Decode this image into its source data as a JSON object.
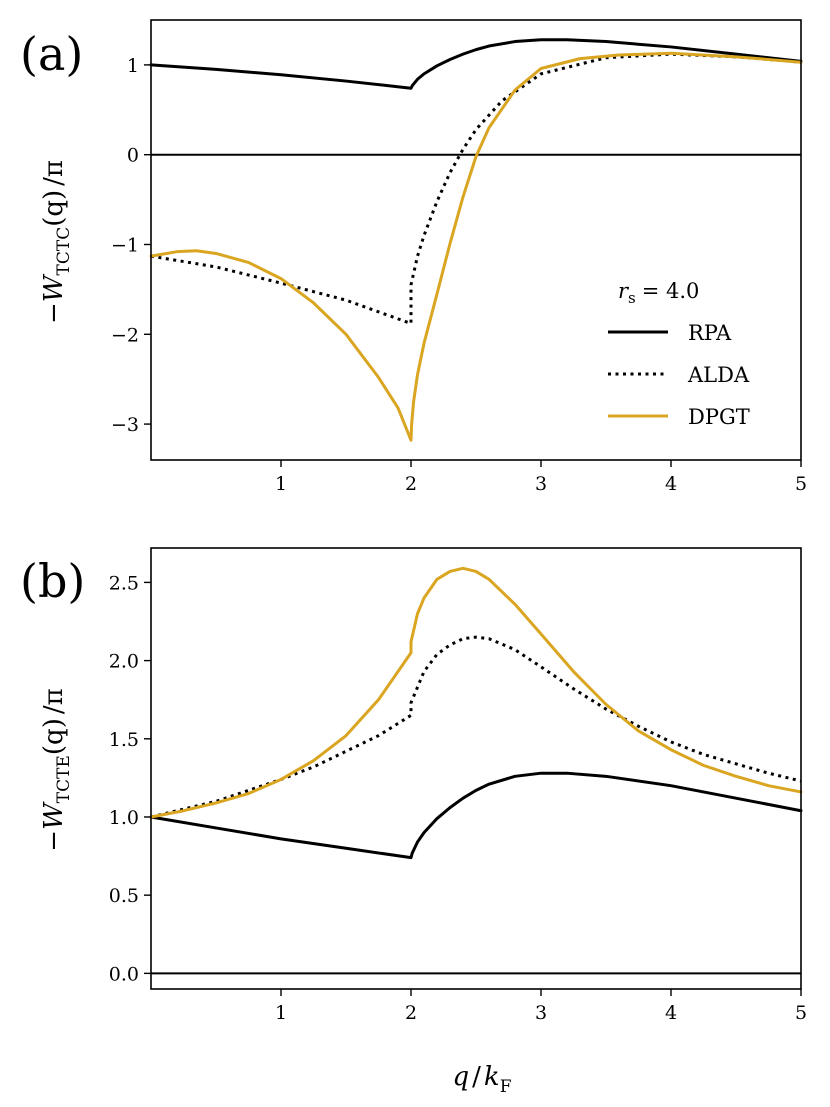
{
  "colors": {
    "rpa": "#000000",
    "alda": "#000000",
    "dpgt": "#DAA520"
  },
  "xlabel": {
    "var": "q",
    "sep": "/",
    "k": "k",
    "sub": "F"
  },
  "legend": {
    "param_var": "r",
    "param_sub": "s",
    "param_value": "= 4.0",
    "entries": [
      {
        "key": "rpa",
        "label": "RPA"
      },
      {
        "key": "alda",
        "label": "ALDA"
      },
      {
        "key": "dpgt",
        "label": "DPGT"
      }
    ]
  },
  "chart_data": [
    {
      "type": "line",
      "panel_label": "(a)",
      "ylabel": {
        "prefix": "−W",
        "sub": "TCTC",
        "arg": "(q)",
        "suffix": "/π"
      },
      "xlim": [
        0,
        5
      ],
      "ylim": [
        -3.4,
        1.5
      ],
      "xticks": [
        {
          "v": 1,
          "label": "1"
        },
        {
          "v": 2,
          "label": "2"
        },
        {
          "v": 3,
          "label": "3"
        },
        {
          "v": 4,
          "label": "4"
        },
        {
          "v": 5,
          "label": "5"
        }
      ],
      "yticks": [
        {
          "v": 1,
          "label": "1"
        },
        {
          "v": 0,
          "label": "0"
        },
        {
          "v": -1,
          "label": "−1"
        },
        {
          "v": -2,
          "label": "−2"
        },
        {
          "v": -3,
          "label": "−3"
        }
      ],
      "hline": 0,
      "series": [
        {
          "name": "RPA",
          "key": "rpa",
          "style": "solid",
          "x": [
            0,
            0.5,
            1.0,
            1.5,
            2.0,
            2.01,
            2.05,
            2.1,
            2.2,
            2.3,
            2.4,
            2.5,
            2.6,
            2.8,
            3.0,
            3.1,
            3.2,
            3.5,
            4.0,
            4.5,
            5.0
          ],
          "y": [
            1.0,
            0.95,
            0.89,
            0.82,
            0.74,
            0.77,
            0.84,
            0.9,
            0.99,
            1.06,
            1.12,
            1.17,
            1.21,
            1.26,
            1.28,
            1.28,
            1.28,
            1.26,
            1.2,
            1.12,
            1.04
          ]
        },
        {
          "name": "ALDA",
          "key": "alda",
          "style": "dotted",
          "x": [
            0,
            0.5,
            1.0,
            1.5,
            2.0,
            2.0,
            2.05,
            2.1,
            2.2,
            2.3,
            2.4,
            2.5,
            2.7,
            3.0,
            3.5,
            4.0,
            4.5,
            5.0
          ],
          "y": [
            -1.13,
            -1.25,
            -1.43,
            -1.62,
            -1.88,
            -1.45,
            -1.13,
            -0.9,
            -0.52,
            -0.2,
            0.06,
            0.28,
            0.6,
            0.9,
            1.08,
            1.12,
            1.09,
            1.03
          ]
        },
        {
          "name": "DPGT",
          "key": "dpgt",
          "style": "solid",
          "x": [
            0,
            0.2,
            0.35,
            0.5,
            0.75,
            1.0,
            1.25,
            1.5,
            1.75,
            1.9,
            2.0,
            2.005,
            2.02,
            2.05,
            2.1,
            2.2,
            2.3,
            2.4,
            2.5,
            2.6,
            2.8,
            3.0,
            3.3,
            3.6,
            4.0,
            4.5,
            5.0
          ],
          "y": [
            -1.13,
            -1.08,
            -1.07,
            -1.1,
            -1.2,
            -1.38,
            -1.65,
            -2.0,
            -2.48,
            -2.82,
            -3.18,
            -3.0,
            -2.75,
            -2.45,
            -2.1,
            -1.55,
            -0.99,
            -0.47,
            -0.02,
            0.3,
            0.72,
            0.96,
            1.07,
            1.11,
            1.13,
            1.09,
            1.03
          ]
        }
      ]
    },
    {
      "type": "line",
      "panel_label": "(b)",
      "ylabel": {
        "prefix": "−W",
        "sub": "TCTE",
        "arg": "(q)",
        "suffix": "/π"
      },
      "xlim": [
        0,
        5
      ],
      "ylim": [
        -0.1,
        2.72
      ],
      "xticks": [
        {
          "v": 1,
          "label": "1"
        },
        {
          "v": 2,
          "label": "2"
        },
        {
          "v": 3,
          "label": "3"
        },
        {
          "v": 4,
          "label": "4"
        },
        {
          "v": 5,
          "label": "5"
        }
      ],
      "yticks": [
        {
          "v": 2.5,
          "label": "2.5"
        },
        {
          "v": 2.0,
          "label": "2.0"
        },
        {
          "v": 1.5,
          "label": "1.5"
        },
        {
          "v": 1.0,
          "label": "1.0"
        },
        {
          "v": 0.5,
          "label": "0.5"
        },
        {
          "v": 0.0,
          "label": "0.0"
        }
      ],
      "hline": 0,
      "series": [
        {
          "name": "RPA",
          "key": "rpa",
          "style": "solid",
          "x": [
            0,
            0.5,
            1.0,
            1.5,
            2.0,
            2.01,
            2.05,
            2.1,
            2.2,
            2.3,
            2.4,
            2.5,
            2.6,
            2.8,
            3.0,
            3.1,
            3.2,
            3.5,
            4.0,
            4.5,
            5.0
          ],
          "y": [
            1.0,
            0.93,
            0.86,
            0.8,
            0.74,
            0.77,
            0.84,
            0.9,
            0.99,
            1.06,
            1.12,
            1.17,
            1.21,
            1.26,
            1.28,
            1.28,
            1.28,
            1.26,
            1.2,
            1.12,
            1.04
          ]
        },
        {
          "name": "ALDA",
          "key": "alda",
          "style": "dotted",
          "x": [
            0,
            0.25,
            0.5,
            0.75,
            1.0,
            1.25,
            1.5,
            1.75,
            2.0,
            2.0,
            2.1,
            2.2,
            2.3,
            2.4,
            2.5,
            2.6,
            2.8,
            3.0,
            3.25,
            3.5,
            3.75,
            4.0,
            4.25,
            4.5,
            4.75,
            5.0
          ],
          "y": [
            1.0,
            1.05,
            1.1,
            1.17,
            1.24,
            1.32,
            1.42,
            1.52,
            1.65,
            1.73,
            1.93,
            2.04,
            2.1,
            2.14,
            2.15,
            2.14,
            2.07,
            1.96,
            1.82,
            1.69,
            1.58,
            1.48,
            1.4,
            1.34,
            1.28,
            1.23
          ]
        },
        {
          "name": "DPGT",
          "key": "dpgt",
          "style": "solid",
          "x": [
            0,
            0.25,
            0.5,
            0.75,
            1.0,
            1.25,
            1.5,
            1.75,
            2.0,
            2.0,
            2.05,
            2.1,
            2.2,
            2.3,
            2.4,
            2.5,
            2.6,
            2.8,
            3.0,
            3.25,
            3.5,
            3.75,
            4.0,
            4.25,
            4.5,
            4.75,
            5.0
          ],
          "y": [
            1.0,
            1.04,
            1.09,
            1.15,
            1.24,
            1.36,
            1.52,
            1.75,
            2.05,
            2.12,
            2.3,
            2.4,
            2.52,
            2.57,
            2.59,
            2.57,
            2.52,
            2.36,
            2.17,
            1.93,
            1.72,
            1.55,
            1.43,
            1.33,
            1.26,
            1.2,
            1.16
          ]
        }
      ]
    }
  ]
}
